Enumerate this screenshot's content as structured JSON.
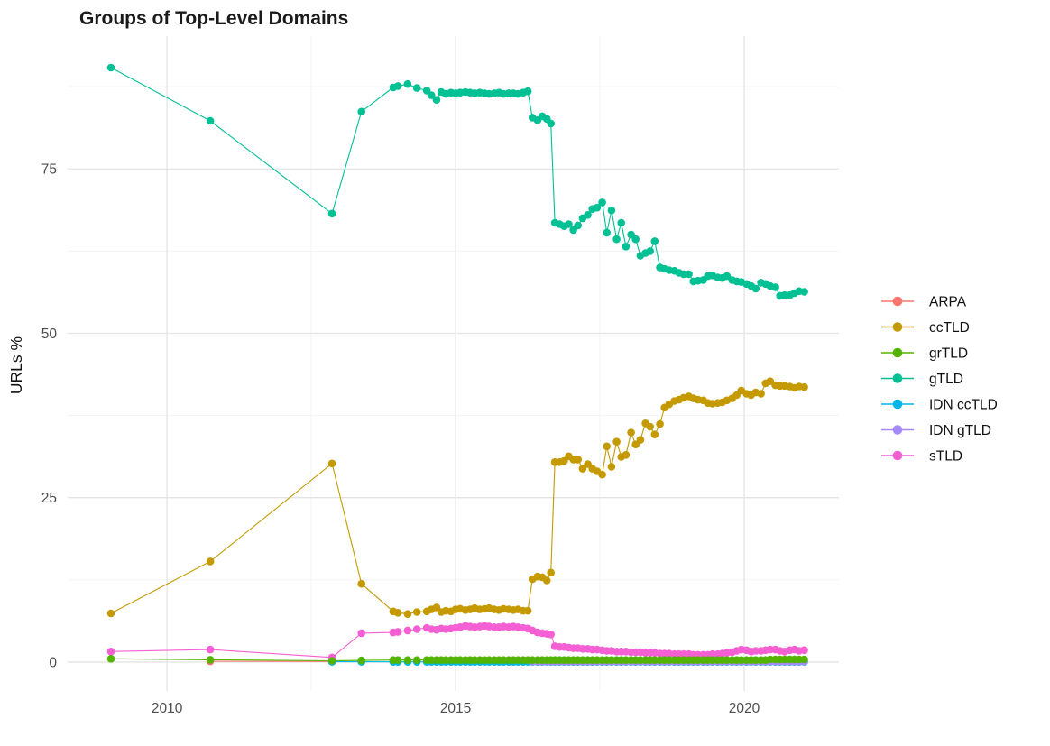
{
  "page": {
    "background": "#ffffff"
  },
  "chart_data": {
    "type": "line",
    "title": "Groups of Top-Level Domains",
    "xlabel": "",
    "ylabel": "URLs %",
    "x_ticks": [
      2010,
      2015,
      2020
    ],
    "x_tick_labels": [
      "2010",
      "2015",
      "2020"
    ],
    "y_ticks": [
      0,
      25,
      50,
      75
    ],
    "y_tick_labels": [
      "0",
      "25",
      "50",
      "75"
    ],
    "x_minor_ticks": [
      2012.5,
      2017.5
    ],
    "y_minor_ticks": [
      12.5,
      37.5,
      62.5,
      87.5
    ],
    "xlim": [
      2008.28,
      2021.64
    ],
    "ylim": [
      -4.4,
      95.2
    ],
    "grid": true,
    "grid_color_major": "#e4e4e4",
    "grid_color_minor": "#f2f2f2",
    "axis_text_color": "#4d4d4d",
    "legend_position": "right",
    "x_dense": [
      2013.92,
      2014.0,
      2014.17,
      2014.33,
      2014.5,
      2014.58,
      2014.67,
      2014.75,
      2014.83,
      2014.92,
      2015.0,
      2015.08,
      2015.17,
      2015.25,
      2015.33,
      2015.42,
      2015.5,
      2015.58,
      2015.67,
      2015.75,
      2015.83,
      2015.92,
      2016.0,
      2016.08,
      2016.17,
      2016.25,
      2016.33,
      2016.42,
      2016.5,
      2016.58,
      2016.65,
      2016.72,
      2016.8,
      2016.88,
      2016.96,
      2017.04,
      2017.12,
      2017.2,
      2017.29,
      2017.37,
      2017.45,
      2017.54,
      2017.62,
      2017.7,
      2017.79,
      2017.87,
      2017.95,
      2018.04,
      2018.12,
      2018.2,
      2018.29,
      2018.37,
      2018.45,
      2018.54,
      2018.62,
      2018.7,
      2018.79,
      2018.87,
      2018.95,
      2019.04,
      2019.12,
      2019.2,
      2019.29,
      2019.37,
      2019.45,
      2019.54,
      2019.62,
      2019.7,
      2019.79,
      2019.87,
      2019.95,
      2020.04,
      2020.12,
      2020.2,
      2020.29,
      2020.37,
      2020.45,
      2020.54,
      2020.62,
      2020.7,
      2020.79,
      2020.87,
      2020.95,
      2021.04
    ],
    "series": [
      {
        "name": "ARPA",
        "color": "#F8766D",
        "points": [
          [
            2010.75,
            0.12
          ],
          [
            2012.86,
            0.08
          ],
          [
            2013.37,
            0.06
          ]
        ],
        "dense_values": null
      },
      {
        "name": "ccTLD",
        "color": "#C49A00",
        "points": [
          [
            2009.03,
            7.4
          ],
          [
            2010.75,
            15.3
          ],
          [
            2012.86,
            30.2
          ],
          [
            2013.37,
            11.9
          ]
        ],
        "dense_values": [
          7.7,
          7.5,
          7.3,
          7.6,
          7.7,
          8.0,
          8.3,
          7.6,
          7.8,
          7.7,
          8.0,
          8.1,
          7.9,
          8.0,
          8.2,
          8.0,
          8.1,
          8.2,
          8.0,
          7.9,
          8.1,
          8.0,
          7.9,
          8.0,
          7.8,
          7.8,
          12.6,
          13.0,
          12.9,
          12.4,
          13.6,
          30.4,
          30.4,
          30.6,
          31.3,
          30.8,
          30.8,
          29.4,
          30.1,
          29.4,
          29.0,
          28.5,
          32.8,
          29.7,
          33.5,
          31.2,
          31.5,
          34.9,
          33.1,
          33.8,
          36.3,
          35.8,
          34.6,
          36.2,
          38.7,
          39.2,
          39.7,
          39.9,
          40.2,
          40.4,
          40.1,
          39.9,
          39.8,
          39.4,
          39.3,
          39.4,
          39.5,
          39.8,
          40.1,
          40.6,
          41.3,
          40.8,
          40.6,
          41.0,
          40.8,
          42.4,
          42.7,
          42.1,
          42.0,
          42.0,
          41.9,
          41.7,
          41.9,
          41.8
        ]
      },
      {
        "name": "grTLD",
        "color": "#53B400",
        "points": [
          [
            2009.03,
            0.5
          ],
          [
            2010.75,
            0.35
          ],
          [
            2012.86,
            0.2
          ],
          [
            2013.37,
            0.25
          ]
        ],
        "dense_values": [
          0.3,
          0.3,
          0.3,
          0.3,
          0.3,
          0.3,
          0.3,
          0.3,
          0.3,
          0.3,
          0.3,
          0.3,
          0.3,
          0.3,
          0.3,
          0.3,
          0.3,
          0.3,
          0.3,
          0.3,
          0.3,
          0.3,
          0.3,
          0.3,
          0.3,
          0.3,
          0.3,
          0.3,
          0.3,
          0.3,
          0.3,
          0.3,
          0.3,
          0.3,
          0.3,
          0.3,
          0.3,
          0.3,
          0.3,
          0.3,
          0.3,
          0.3,
          0.3,
          0.3,
          0.3,
          0.3,
          0.3,
          0.3,
          0.3,
          0.3,
          0.3,
          0.3,
          0.3,
          0.3,
          0.3,
          0.3,
          0.3,
          0.3,
          0.3,
          0.3,
          0.3,
          0.3,
          0.3,
          0.3,
          0.3,
          0.3,
          0.3,
          0.3,
          0.3,
          0.3,
          0.3,
          0.3,
          0.3,
          0.3,
          0.3,
          0.3,
          0.4,
          0.4,
          0.4,
          0.4,
          0.4,
          0.4,
          0.4,
          0.4
        ]
      },
      {
        "name": "gTLD",
        "color": "#00C094",
        "points": [
          [
            2009.03,
            90.4
          ],
          [
            2010.75,
            82.3
          ],
          [
            2012.86,
            68.2
          ],
          [
            2013.37,
            83.7
          ]
        ],
        "dense_values": [
          87.4,
          87.6,
          87.9,
          87.3,
          86.9,
          86.2,
          85.5,
          86.7,
          86.4,
          86.6,
          86.5,
          86.6,
          86.7,
          86.6,
          86.5,
          86.6,
          86.5,
          86.4,
          86.5,
          86.6,
          86.4,
          86.5,
          86.5,
          86.4,
          86.6,
          86.8,
          82.8,
          82.4,
          83.0,
          82.6,
          81.9,
          66.8,
          66.6,
          66.3,
          66.6,
          65.7,
          66.4,
          67.5,
          68.0,
          68.9,
          69.1,
          69.9,
          65.3,
          68.7,
          64.3,
          66.8,
          63.2,
          65.0,
          64.3,
          61.8,
          62.2,
          62.5,
          64.0,
          60.0,
          59.8,
          59.6,
          59.5,
          59.2,
          59.0,
          59.0,
          57.9,
          58.0,
          58.1,
          58.7,
          58.8,
          58.5,
          58.4,
          58.7,
          58.1,
          57.9,
          57.8,
          57.5,
          57.2,
          56.8,
          57.7,
          57.5,
          57.2,
          57.0,
          55.7,
          55.8,
          55.8,
          56.1,
          56.4,
          56.3
        ]
      },
      {
        "name": "IDN ccTLD",
        "color": "#00B6EB",
        "points": [
          [
            2012.86,
            0.05
          ],
          [
            2013.37,
            0.04
          ]
        ],
        "dense_values": [
          0.03,
          0.03,
          0.03,
          0.03,
          0.03,
          0.03,
          0.03,
          0.03,
          0.03,
          0.03,
          0.03,
          0.03,
          0.03,
          0.03,
          0.03,
          0.03,
          0.03,
          0.03,
          0.03,
          0.03,
          0.03,
          0.03,
          0.03,
          0.03,
          0.03,
          0.03,
          0.03,
          0.03,
          0.03,
          0.03,
          0.03,
          0.03,
          0.03,
          0.03,
          0.03,
          0.03,
          0.03,
          0.03,
          0.03,
          0.03,
          0.03,
          0.03,
          0.03,
          0.03,
          0.03,
          0.03,
          0.03,
          0.03,
          0.03,
          0.03,
          0.03,
          0.03,
          0.03,
          0.03,
          0.03,
          0.03,
          0.03,
          0.03,
          0.03,
          0.03,
          0.03,
          0.03,
          0.03,
          0.03,
          0.03,
          0.03,
          0.03,
          0.03,
          0.03,
          0.03,
          0.03,
          0.03,
          0.03,
          0.03,
          0.03,
          0.03,
          0.03,
          0.03,
          0.03,
          0.03,
          0.03,
          0.03,
          0.03,
          0.03
        ]
      },
      {
        "name": "IDN gTLD",
        "color": "#A58AFF",
        "points": [],
        "dense_values": [
          null,
          null,
          null,
          null,
          null,
          null,
          null,
          null,
          null,
          null,
          null,
          null,
          null,
          null,
          null,
          null,
          null,
          null,
          null,
          null,
          null,
          null,
          null,
          null,
          null,
          null,
          0.08,
          0.08,
          0.08,
          0.08,
          0.08,
          0.08,
          0.08,
          0.08,
          0.08,
          0.08,
          0.08,
          0.08,
          0.08,
          0.08,
          0.08,
          0.08,
          0.08,
          0.08,
          0.08,
          0.08,
          0.08,
          0.08,
          0.08,
          0.08,
          0.08,
          0.08,
          0.08,
          0.08,
          0.08,
          0.08,
          0.08,
          0.08,
          0.08,
          0.08,
          0.08,
          0.08,
          0.08,
          0.08,
          0.08,
          0.08,
          0.08,
          0.08,
          0.08,
          0.08,
          0.08,
          0.08,
          0.08,
          0.08,
          0.08,
          0.08,
          0.08,
          0.08,
          0.08,
          0.08,
          0.08,
          0.08,
          0.08,
          0.08
        ]
      },
      {
        "name": "sTLD",
        "color": "#F45FD3",
        "points": [
          [
            2009.03,
            1.6
          ],
          [
            2010.75,
            1.9
          ],
          [
            2012.86,
            0.7
          ],
          [
            2013.37,
            4.4
          ]
        ],
        "dense_values": [
          4.5,
          4.6,
          4.8,
          5.0,
          5.2,
          5.0,
          4.9,
          5.1,
          5.0,
          5.1,
          5.2,
          5.3,
          5.5,
          5.4,
          5.3,
          5.4,
          5.5,
          5.4,
          5.3,
          5.3,
          5.4,
          5.3,
          5.4,
          5.3,
          5.2,
          5.1,
          4.8,
          4.5,
          4.4,
          4.3,
          4.2,
          2.4,
          2.3,
          2.3,
          2.2,
          2.1,
          2.1,
          2.0,
          2.0,
          1.9,
          1.9,
          1.8,
          1.7,
          1.7,
          1.6,
          1.6,
          1.6,
          1.5,
          1.5,
          1.5,
          1.4,
          1.4,
          1.4,
          1.3,
          1.3,
          1.3,
          1.2,
          1.2,
          1.2,
          1.2,
          1.1,
          1.1,
          1.1,
          1.1,
          1.2,
          1.2,
          1.3,
          1.4,
          1.5,
          1.7,
          1.9,
          1.8,
          1.6,
          1.7,
          1.7,
          1.8,
          1.9,
          1.9,
          1.7,
          1.6,
          1.8,
          1.9,
          1.7,
          1.8
        ]
      }
    ]
  }
}
